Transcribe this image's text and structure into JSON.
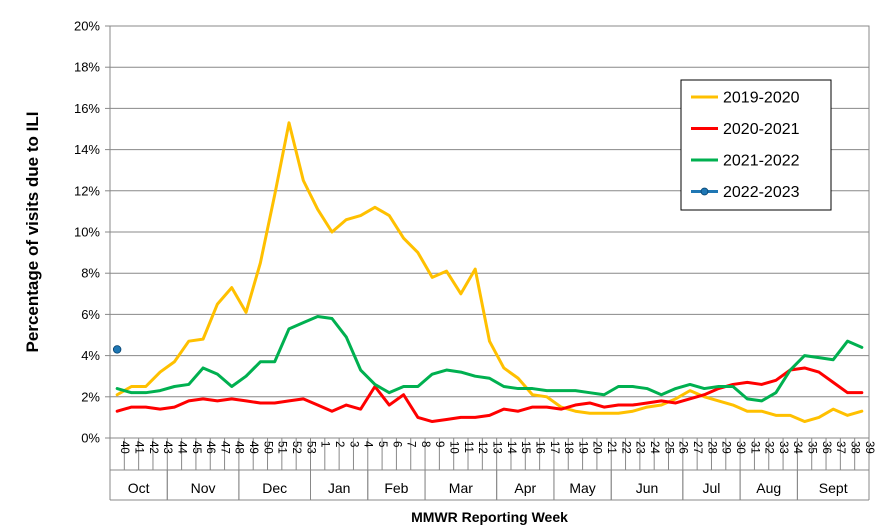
{
  "chart_data": {
    "type": "line",
    "title": "",
    "xlabel": "MMWR Reporting Week",
    "ylabel": "Percentage of visits due to ILI",
    "ylim": [
      0,
      20
    ],
    "yticks": [
      0,
      2,
      4,
      6,
      8,
      10,
      12,
      14,
      16,
      18,
      20
    ],
    "ytick_labels": [
      "0%",
      "2%",
      "4%",
      "6%",
      "8%",
      "10%",
      "12%",
      "14%",
      "16%",
      "18%",
      "20%"
    ],
    "grid": true,
    "legend_position": "top-right",
    "weeks": [
      "40",
      "41",
      "42",
      "43",
      "44",
      "45",
      "46",
      "47",
      "48",
      "49",
      "50",
      "51",
      "52",
      "53",
      "1",
      "2",
      "3",
      "4",
      "5",
      "6",
      "7",
      "8",
      "9",
      "10",
      "11",
      "12",
      "13",
      "14",
      "15",
      "16",
      "17",
      "18",
      "19",
      "20",
      "21",
      "22",
      "23",
      "24",
      "25",
      "26",
      "27",
      "28",
      "29",
      "30",
      "31",
      "32",
      "33",
      "34",
      "35",
      "36",
      "37",
      "38",
      "39"
    ],
    "months": [
      {
        "label": "Oct",
        "start": 0,
        "end": 4
      },
      {
        "label": "Nov",
        "start": 4,
        "end": 9
      },
      {
        "label": "Dec",
        "start": 9,
        "end": 14
      },
      {
        "label": "Jan",
        "start": 14,
        "end": 18
      },
      {
        "label": "Feb",
        "start": 18,
        "end": 22
      },
      {
        "label": "Mar",
        "start": 22,
        "end": 27
      },
      {
        "label": "Apr",
        "start": 27,
        "end": 31
      },
      {
        "label": "May",
        "start": 31,
        "end": 35
      },
      {
        "label": "Jun",
        "start": 35,
        "end": 40
      },
      {
        "label": "Jul",
        "start": 40,
        "end": 44
      },
      {
        "label": "Aug",
        "start": 44,
        "end": 48
      },
      {
        "label": "Sept",
        "start": 48,
        "end": 53
      }
    ],
    "series": [
      {
        "name": "2019-2020",
        "color": "#ffc000",
        "marker": false,
        "values": [
          2.1,
          2.5,
          2.5,
          3.2,
          3.7,
          4.7,
          4.8,
          6.5,
          7.3,
          6.1,
          8.5,
          11.8,
          15.3,
          12.5,
          11.1,
          10.0,
          10.6,
          10.8,
          11.2,
          10.8,
          9.7,
          9.0,
          7.8,
          8.1,
          7.0,
          8.2,
          4.7,
          3.4,
          2.9,
          2.1,
          2.0,
          1.5,
          1.3,
          1.2,
          1.2,
          1.2,
          1.3,
          1.5,
          1.6,
          1.9,
          2.3,
          2.0,
          1.8,
          1.6,
          1.3,
          1.3,
          1.1,
          1.1,
          0.8,
          1.0,
          1.4,
          1.1,
          1.3
        ]
      },
      {
        "name": "2020-2021",
        "color": "#ff0000",
        "marker": false,
        "values": [
          1.3,
          1.5,
          1.5,
          1.4,
          1.5,
          1.8,
          1.9,
          1.8,
          1.9,
          1.8,
          1.7,
          1.7,
          1.8,
          1.9,
          1.6,
          1.3,
          1.6,
          1.4,
          2.5,
          1.6,
          2.1,
          1.0,
          0.8,
          0.9,
          1.0,
          1.0,
          1.1,
          1.4,
          1.3,
          1.5,
          1.5,
          1.4,
          1.6,
          1.7,
          1.5,
          1.6,
          1.6,
          1.7,
          1.8,
          1.7,
          1.9,
          2.1,
          2.4,
          2.6,
          2.7,
          2.6,
          2.8,
          3.3,
          3.4,
          3.2,
          2.7,
          2.2,
          2.2
        ]
      },
      {
        "name": "2021-2022",
        "color": "#00b050",
        "marker": false,
        "values": [
          2.4,
          2.2,
          2.2,
          2.3,
          2.5,
          2.6,
          3.4,
          3.1,
          2.5,
          3.0,
          3.7,
          3.7,
          5.3,
          5.6,
          5.9,
          5.8,
          4.9,
          3.3,
          2.6,
          2.2,
          2.5,
          2.5,
          3.1,
          3.3,
          3.2,
          3.0,
          2.9,
          2.5,
          2.4,
          2.4,
          2.3,
          2.3,
          2.3,
          2.2,
          2.1,
          2.5,
          2.5,
          2.4,
          2.1,
          2.4,
          2.6,
          2.4,
          2.5,
          2.5,
          1.9,
          1.8,
          2.2,
          3.3,
          4.0,
          3.9,
          3.8,
          4.7,
          4.4
        ]
      },
      {
        "name": "2022-2023",
        "color": "#1f77b4",
        "marker": true,
        "values": [
          4.3
        ]
      }
    ]
  }
}
